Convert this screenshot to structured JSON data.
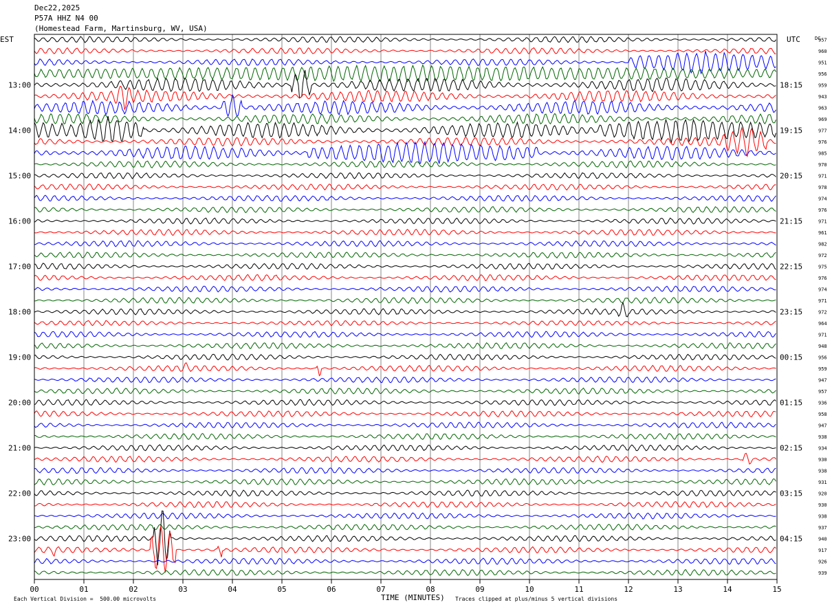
{
  "header": {
    "date": "Dec22,2025",
    "station": "P57A HHZ N4 00",
    "location": "(Homestead Farm, Martinsburg, WV, USA)"
  },
  "labels": {
    "left_zone": "EST",
    "right_zone": "UTC",
    "dc_header": "DC"
  },
  "footer": {
    "xlabel": "TIME (MINUTES)",
    "scale_note": "Each Vertical Division =  500.00 microvolts",
    "clip_note": "Traces clipped at plus/minus 5 vertical divisions"
  },
  "chart_data": {
    "type": "line",
    "title": "P57A HHZ N4 00",
    "xlabel": "TIME (MINUTES)",
    "xlim": [
      0,
      15
    ],
    "x_ticks": [
      "00",
      "01",
      "02",
      "03",
      "04",
      "05",
      "06",
      "07",
      "08",
      "09",
      "10",
      "11",
      "12",
      "13",
      "14",
      "15"
    ],
    "left_hour_labels": [
      "13:00",
      "14:00",
      "15:00",
      "16:00",
      "17:00",
      "18:00",
      "19:00",
      "20:00",
      "21:00",
      "22:00",
      "23:00"
    ],
    "right_hour_labels": [
      "18:15",
      "19:15",
      "20:15",
      "21:15",
      "22:15",
      "23:15",
      "00:15",
      "01:15",
      "02:15",
      "03:15",
      "04:15"
    ],
    "trace_colors": [
      "#000000",
      "#ff0000",
      "#0000ff",
      "#006400"
    ],
    "dc_offsets": [
      957,
      960,
      951,
      956,
      959,
      943,
      963,
      969,
      977,
      976,
      985,
      970,
      971,
      978,
      974,
      976,
      971,
      961,
      982,
      972,
      975,
      976,
      974,
      971,
      972,
      964,
      971,
      948,
      956,
      959,
      947,
      957,
      936,
      958,
      947,
      938,
      934,
      930,
      938,
      931,
      920,
      930,
      938,
      937,
      940,
      917,
      926,
      939
    ],
    "trace_amplitude": [
      0.35,
      0.35,
      0.4,
      0.55,
      0.8,
      0.7,
      0.8,
      0.6,
      0.9,
      0.5,
      0.8,
      0.4,
      0.35,
      0.35,
      0.35,
      0.35,
      0.35,
      0.35,
      0.35,
      0.35,
      0.35,
      0.35,
      0.35,
      0.35,
      0.35,
      0.3,
      0.35,
      0.35,
      0.35,
      0.35,
      0.35,
      0.35,
      0.35,
      0.35,
      0.35,
      0.35,
      0.35,
      0.35,
      0.35,
      0.35,
      0.35,
      0.35,
      0.35,
      0.35,
      0.35,
      0.35,
      0.35,
      0.35
    ],
    "events": [
      {
        "trace": 2,
        "start_min": 12.0,
        "end_min": 15.0,
        "amp": 1.6
      },
      {
        "trace": 3,
        "start_min": 0.0,
        "end_min": 15.0,
        "amp": 1.2
      },
      {
        "trace": 4,
        "start_min": 5.2,
        "end_min": 5.6,
        "amp": 2.5
      },
      {
        "trace": 5,
        "start_min": 1.6,
        "end_min": 2.0,
        "amp": 2.0
      },
      {
        "trace": 6,
        "start_min": 3.8,
        "end_min": 4.2,
        "amp": 2.0
      },
      {
        "trace": 8,
        "start_min": 0.8,
        "end_min": 2.2,
        "amp": 2.0
      },
      {
        "trace": 8,
        "start_min": 11.4,
        "end_min": 14.8,
        "amp": 1.8
      },
      {
        "trace": 9,
        "start_min": 13.9,
        "end_min": 14.8,
        "amp": 2.2
      },
      {
        "trace": 10,
        "start_min": 5.5,
        "end_min": 10.2,
        "amp": 1.6
      },
      {
        "trace": 24,
        "start_min": 11.8,
        "end_min": 12.0,
        "amp": 1.4
      },
      {
        "trace": 29,
        "start_min": 3.0,
        "end_min": 3.1,
        "amp": 1.3
      },
      {
        "trace": 29,
        "start_min": 5.7,
        "end_min": 5.8,
        "amp": 1.3
      },
      {
        "trace": 37,
        "start_min": 14.3,
        "end_min": 14.5,
        "amp": 1.2
      },
      {
        "trace": 44,
        "start_min": 2.4,
        "end_min": 2.75,
        "amp": 5.0
      },
      {
        "trace": 45,
        "start_min": 2.35,
        "end_min": 2.85,
        "amp": 4.0
      },
      {
        "trace": 45,
        "start_min": 3.7,
        "end_min": 3.8,
        "amp": 1.5
      },
      {
        "trace": 45,
        "start_min": 0.35,
        "end_min": 0.45,
        "amp": 1.2
      }
    ]
  }
}
